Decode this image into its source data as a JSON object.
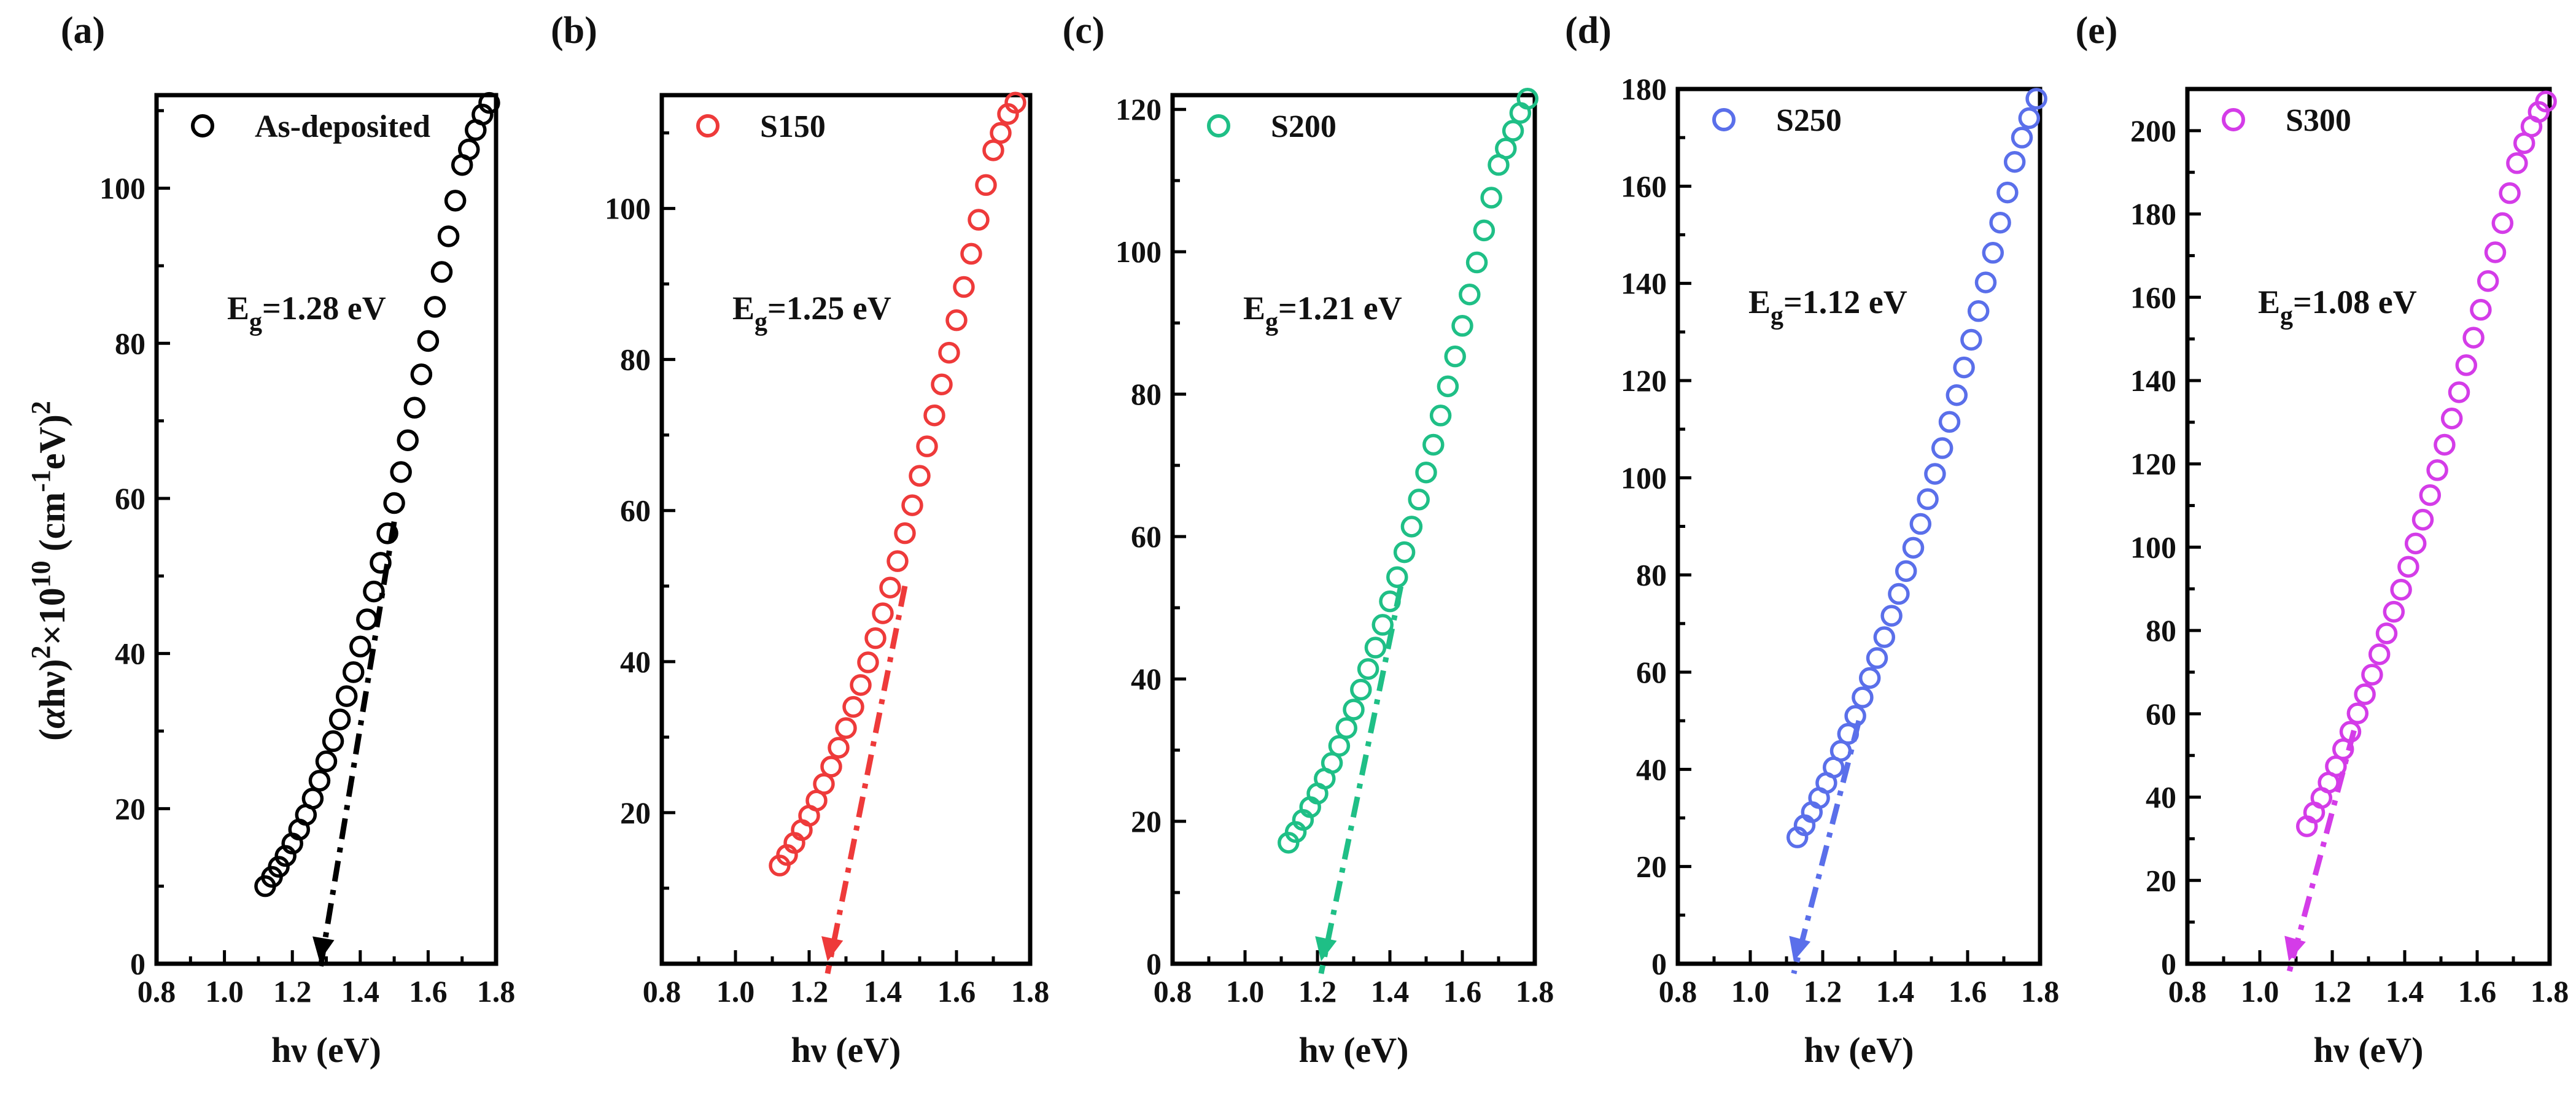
{
  "chart_data": [
    {
      "type": "scatter",
      "panel": "(a)",
      "legend": "As-deposited",
      "color": "#000000",
      "eg_label": "E",
      "eg_sub": "g",
      "eg_rest": "=1.28 eV",
      "eg": 1.28,
      "xlabel_main": "hν",
      "xlabel_unit": " (eV)",
      "xlim": [
        0.8,
        1.8
      ],
      "ylim": [
        0,
        112
      ],
      "xticks": [
        0.8,
        1.0,
        1.2,
        1.4,
        1.6,
        1.8
      ],
      "xtick_labels": [
        "0.8",
        "1.0",
        "1.2",
        "1.4",
        "1.6",
        "1.8"
      ],
      "yticks": [
        0,
        20,
        40,
        60,
        80,
        100
      ],
      "ytick_labels": [
        "0",
        "20",
        "40",
        "60",
        "80",
        "100"
      ],
      "points_x": [
        1.12,
        1.14,
        1.16,
        1.18,
        1.2,
        1.22,
        1.24,
        1.26,
        1.28,
        1.3,
        1.32,
        1.34,
        1.36,
        1.38,
        1.4,
        1.42,
        1.44,
        1.46,
        1.48,
        1.5,
        1.52,
        1.54,
        1.56,
        1.58,
        1.6,
        1.62,
        1.64,
        1.66,
        1.68,
        1.7,
        1.72,
        1.74,
        1.76,
        1.78
      ],
      "points_y": [
        10.0,
        11.2,
        12.5,
        13.9,
        15.5,
        17.3,
        19.2,
        21.3,
        23.6,
        26.1,
        28.7,
        31.5,
        34.5,
        37.6,
        40.9,
        44.4,
        48.0,
        51.7,
        55.5,
        59.4,
        63.4,
        67.5,
        71.7,
        76.0,
        80.3,
        84.7,
        89.2,
        93.8,
        98.4,
        103.0,
        105.0,
        107.5,
        109.5,
        111.0
      ],
      "fit_line": [
        [
          1.28,
          0
        ],
        [
          1.5,
          57
        ]
      ]
    },
    {
      "type": "scatter",
      "panel": "(b)",
      "legend": "S150",
      "color": "#ee3a3a",
      "eg_label": "E",
      "eg_sub": "g",
      "eg_rest": "=1.25 eV",
      "eg": 1.25,
      "xlabel_main": "hν",
      "xlabel_unit": " (eV)",
      "xlim": [
        0.8,
        1.8
      ],
      "ylim": [
        0,
        115
      ],
      "xticks": [
        0.8,
        1.0,
        1.2,
        1.4,
        1.6,
        1.8
      ],
      "xtick_labels": [
        "0.8",
        "1.0",
        "1.2",
        "1.4",
        "1.6",
        "1.8"
      ],
      "yticks": [
        20,
        40,
        60,
        80,
        100
      ],
      "ytick_labels": [
        "20",
        "40",
        "60",
        "80",
        "100"
      ],
      "points_x": [
        1.12,
        1.14,
        1.16,
        1.18,
        1.2,
        1.22,
        1.24,
        1.26,
        1.28,
        1.3,
        1.32,
        1.34,
        1.36,
        1.38,
        1.4,
        1.42,
        1.44,
        1.46,
        1.48,
        1.5,
        1.52,
        1.54,
        1.56,
        1.58,
        1.6,
        1.62,
        1.64,
        1.66,
        1.68,
        1.7,
        1.72,
        1.74,
        1.76,
        1.78
      ],
      "points_y": [
        13.0,
        14.4,
        16.0,
        17.7,
        19.6,
        21.6,
        23.8,
        26.1,
        28.6,
        31.2,
        34.0,
        36.9,
        39.9,
        43.1,
        46.4,
        49.8,
        53.3,
        57.0,
        60.7,
        64.6,
        68.5,
        72.6,
        76.7,
        80.9,
        85.2,
        89.6,
        94.0,
        98.5,
        103.1,
        107.7,
        110.0,
        112.5,
        114.0,
        115.0
      ],
      "fit_line": [
        [
          1.25,
          0
        ],
        [
          1.46,
          50
        ]
      ]
    },
    {
      "type": "scatter",
      "panel": "(c)",
      "legend": "S200",
      "color": "#1fbf86",
      "eg_label": "E",
      "eg_sub": "g",
      "eg_rest": "=1.21 eV",
      "eg": 1.21,
      "xlabel_main": "hν",
      "xlabel_unit": " (eV)",
      "xlim": [
        0.8,
        1.8
      ],
      "ylim": [
        0,
        122
      ],
      "xticks": [
        0.8,
        1.0,
        1.2,
        1.4,
        1.6,
        1.8
      ],
      "xtick_labels": [
        "0.8",
        "1.0",
        "1.2",
        "1.4",
        "1.6",
        "1.8"
      ],
      "yticks": [
        0,
        20,
        40,
        60,
        80,
        100,
        120
      ],
      "ytick_labels": [
        "0",
        "20",
        "40",
        "60",
        "80",
        "100",
        "120"
      ],
      "points_x": [
        1.12,
        1.14,
        1.16,
        1.18,
        1.2,
        1.22,
        1.24,
        1.26,
        1.28,
        1.3,
        1.32,
        1.34,
        1.36,
        1.38,
        1.4,
        1.42,
        1.44,
        1.46,
        1.48,
        1.5,
        1.52,
        1.54,
        1.56,
        1.58,
        1.6,
        1.62,
        1.64,
        1.66,
        1.68,
        1.7,
        1.72,
        1.74,
        1.76,
        1.78
      ],
      "points_y": [
        17.0,
        18.5,
        20.2,
        22.0,
        23.9,
        26.0,
        28.2,
        30.6,
        33.1,
        35.7,
        38.5,
        41.4,
        44.4,
        47.6,
        50.9,
        54.3,
        57.8,
        61.4,
        65.2,
        69.0,
        72.9,
        77.0,
        81.1,
        85.3,
        89.6,
        94.0,
        98.5,
        103.0,
        107.6,
        112.2,
        114.5,
        117.0,
        119.5,
        121.5
      ],
      "fit_line": [
        [
          1.21,
          0
        ],
        [
          1.43,
          53
        ]
      ]
    },
    {
      "type": "scatter",
      "panel": "(d)",
      "legend": "S250",
      "color": "#5a6fea",
      "eg_label": "E",
      "eg_sub": "g",
      "eg_rest": "=1.12 eV",
      "eg": 1.12,
      "xlabel_main": "hν",
      "xlabel_unit": " (eV)",
      "xlim": [
        0.8,
        1.8
      ],
      "ylim": [
        0,
        180
      ],
      "xticks": [
        0.8,
        1.0,
        1.2,
        1.4,
        1.6,
        1.8
      ],
      "xtick_labels": [
        "0.8",
        "1.0",
        "1.2",
        "1.4",
        "1.6",
        "1.8"
      ],
      "yticks": [
        0,
        20,
        40,
        60,
        80,
        100,
        120,
        140,
        160,
        180
      ],
      "ytick_labels": [
        "0",
        "20",
        "40",
        "60",
        "80",
        "100",
        "120",
        "140",
        "160",
        "180"
      ],
      "points_x": [
        1.13,
        1.15,
        1.17,
        1.19,
        1.21,
        1.23,
        1.25,
        1.27,
        1.29,
        1.31,
        1.33,
        1.35,
        1.37,
        1.39,
        1.41,
        1.43,
        1.45,
        1.47,
        1.49,
        1.51,
        1.53,
        1.55,
        1.57,
        1.59,
        1.61,
        1.63,
        1.65,
        1.67,
        1.69,
        1.71,
        1.73,
        1.75,
        1.77,
        1.79
      ],
      "points_y": [
        26.0,
        28.5,
        31.2,
        34.1,
        37.2,
        40.4,
        43.8,
        47.3,
        51.0,
        54.8,
        58.8,
        62.9,
        67.2,
        71.6,
        76.1,
        80.8,
        85.6,
        90.5,
        95.6,
        100.8,
        106.1,
        111.5,
        117.0,
        122.7,
        128.4,
        134.3,
        140.2,
        146.3,
        152.5,
        158.7,
        165.0,
        170.0,
        174.0,
        178.0
      ],
      "fit_line": [
        [
          1.12,
          0
        ],
        [
          1.3,
          50
        ]
      ]
    },
    {
      "type": "scatter",
      "panel": "(e)",
      "legend": "S300",
      "color": "#d43ce8",
      "eg_label": "E",
      "eg_sub": "g",
      "eg_rest": "=1.08 eV",
      "eg": 1.08,
      "xlabel_main": "hν",
      "xlabel_unit": " (eV)",
      "xlim": [
        0.8,
        1.8
      ],
      "ylim": [
        0,
        210
      ],
      "xticks": [
        0.8,
        1.0,
        1.2,
        1.4,
        1.6,
        1.8
      ],
      "xtick_labels": [
        "0.8",
        "1.0",
        "1.2",
        "1.4",
        "1.6",
        "1.8"
      ],
      "yticks": [
        0,
        20,
        40,
        60,
        80,
        100,
        120,
        140,
        160,
        180,
        200
      ],
      "ytick_labels": [
        "0",
        "20",
        "40",
        "60",
        "80",
        "100",
        "120",
        "140",
        "160",
        "180",
        "200"
      ],
      "points_x": [
        1.13,
        1.15,
        1.17,
        1.19,
        1.21,
        1.23,
        1.25,
        1.27,
        1.29,
        1.31,
        1.33,
        1.35,
        1.37,
        1.39,
        1.41,
        1.43,
        1.45,
        1.47,
        1.49,
        1.51,
        1.53,
        1.55,
        1.57,
        1.59,
        1.61,
        1.63,
        1.65,
        1.67,
        1.69,
        1.71,
        1.73,
        1.75,
        1.77,
        1.79
      ],
      "points_y": [
        33.0,
        36.3,
        39.8,
        43.5,
        47.4,
        51.5,
        55.7,
        60.1,
        64.7,
        69.4,
        74.3,
        79.3,
        84.5,
        89.8,
        95.3,
        100.9,
        106.6,
        112.5,
        118.5,
        124.6,
        130.9,
        137.2,
        143.7,
        150.3,
        157.0,
        163.9,
        170.8,
        177.8,
        185.0,
        192.2,
        197.0,
        201.0,
        204.5,
        207.0
      ],
      "fit_line": [
        [
          1.08,
          0
        ],
        [
          1.26,
          56
        ]
      ]
    }
  ],
  "y_axis_label": {
    "open": "(",
    "alpha": "α",
    "mid": "hν)",
    "sup1": "2",
    "times": "×10",
    "sup2": "10",
    "unit_open": " (cm",
    "sup3": "-1",
    "unit_mid": "eV)",
    "sup4": "2"
  }
}
